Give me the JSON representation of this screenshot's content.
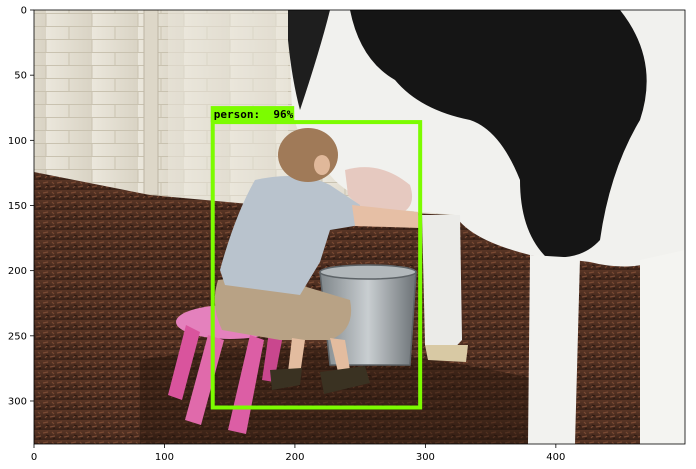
{
  "figure": {
    "x_axis": {
      "min": 0,
      "max": 499,
      "ticks": [
        0,
        100,
        200,
        300,
        400
      ]
    },
    "y_axis": {
      "min": 0,
      "max": 333,
      "ticks": [
        0,
        50,
        100,
        150,
        200,
        250,
        300
      ]
    }
  },
  "detection": {
    "label": "person:  96%",
    "class": "person",
    "score_percent": 96,
    "box_data": {
      "xmin": 137,
      "ymin": 86,
      "xmax": 296,
      "ymax": 305
    },
    "color": "#7cfc00"
  },
  "scene": {
    "subject": "child-milking-cow",
    "colors": {
      "wall": "#e6e1d4",
      "ground": "#4a2c1f",
      "cow_white": "#f2f2f0",
      "cow_black": "#1a1a1a",
      "shirt": "#b8c2cc",
      "shorts": "#b39e82",
      "stool": "#e377b8",
      "bucket": "#9ea4a8"
    }
  }
}
